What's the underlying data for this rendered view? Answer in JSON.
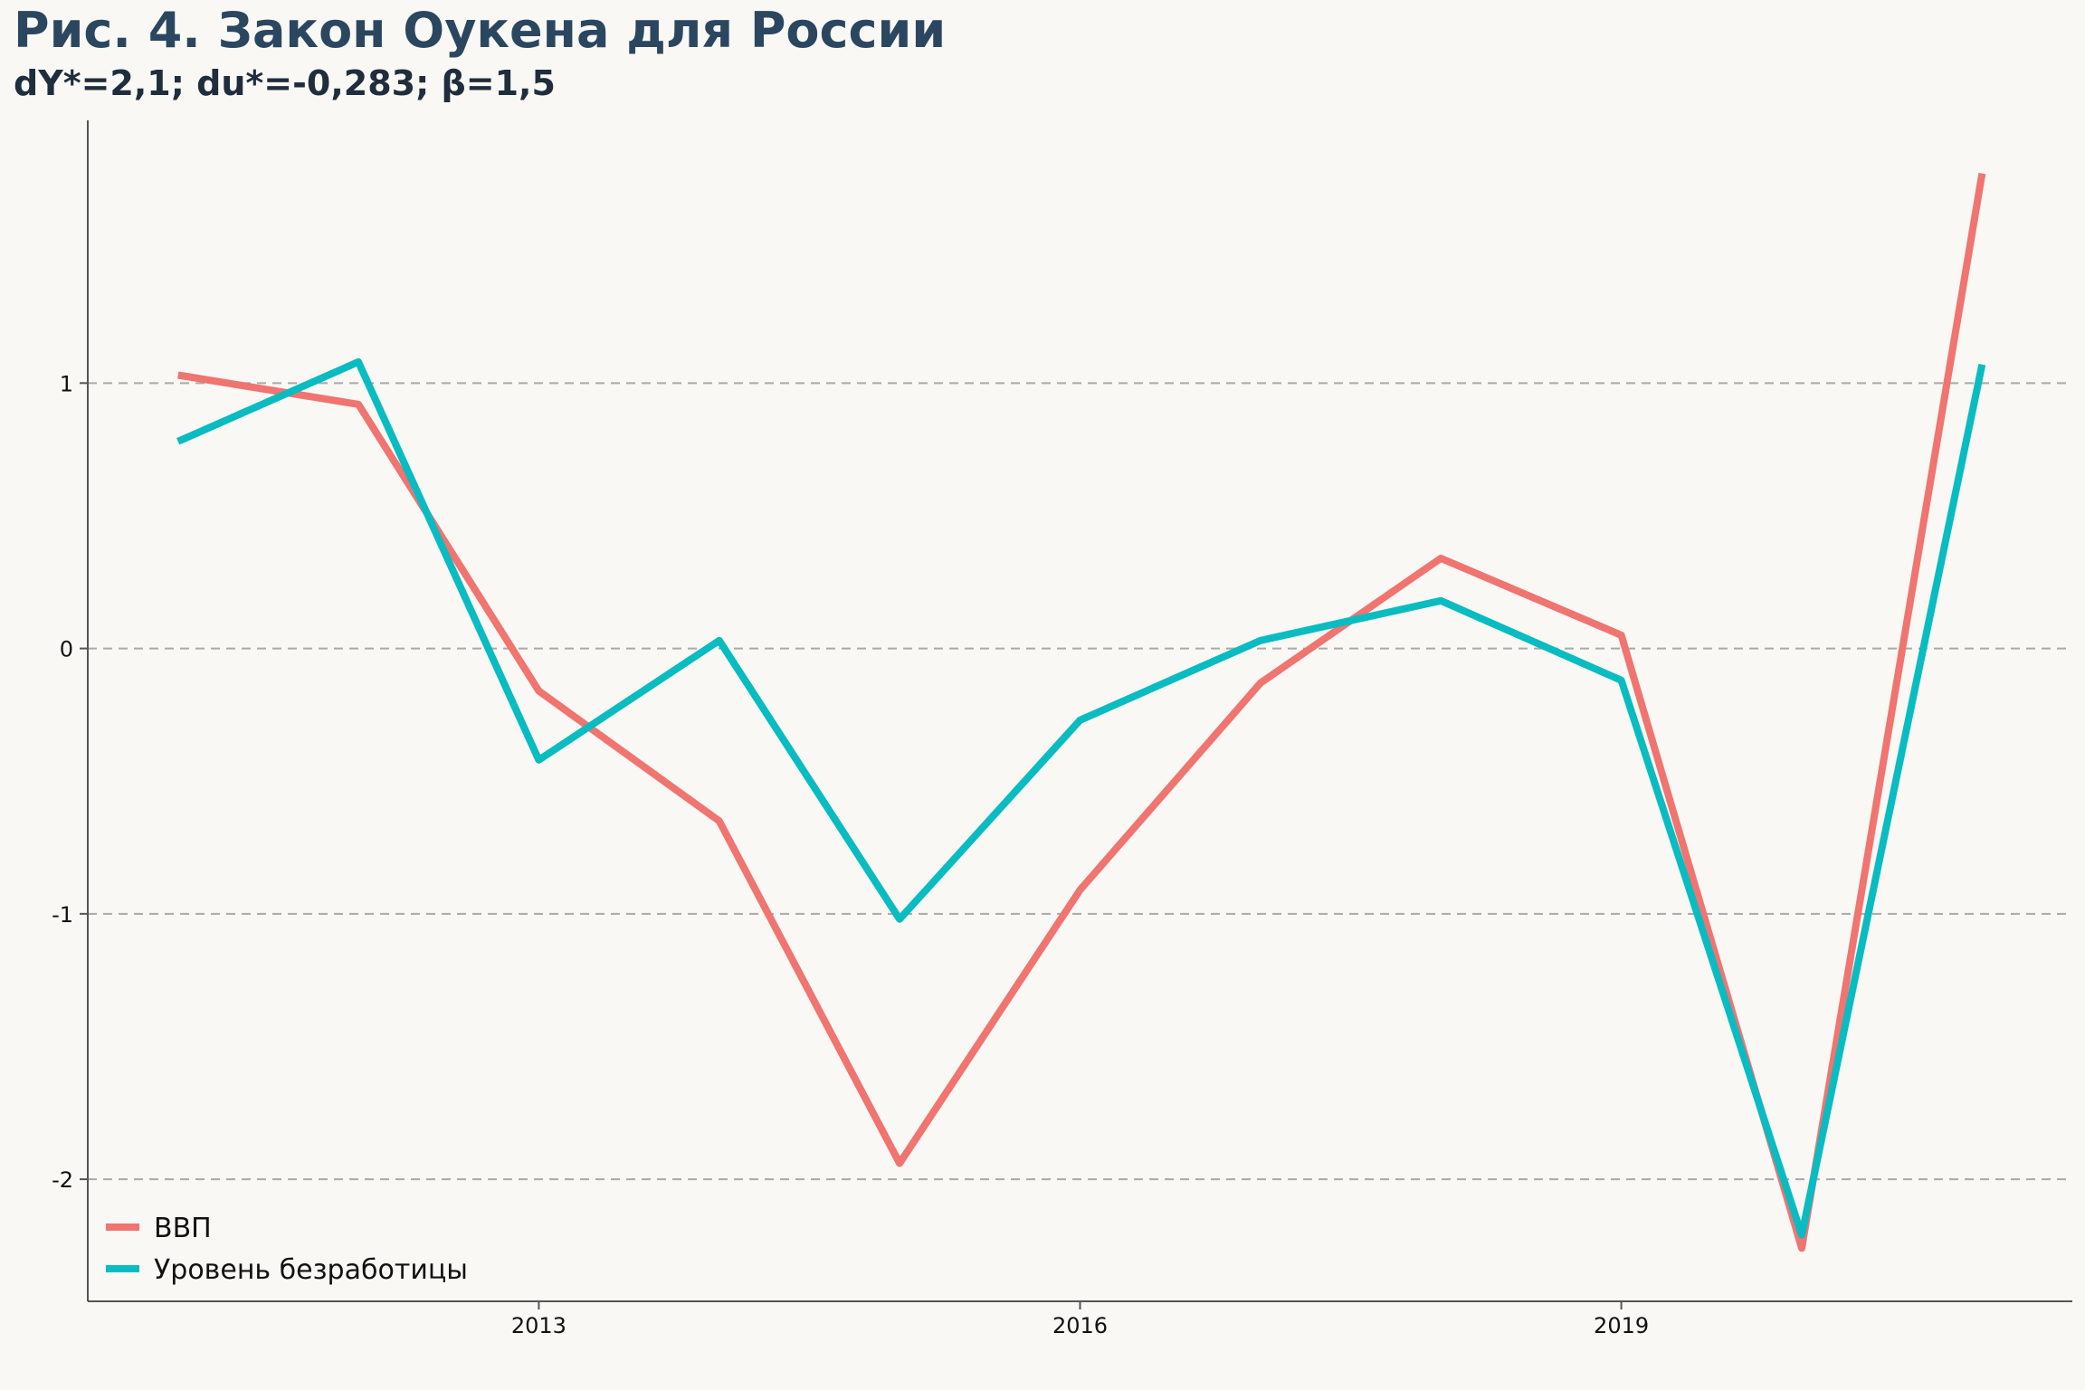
{
  "title": "Рис. 4. Закон Оукена для России",
  "subtitle": "dY*=2,1; du*=-0,283; β=1,5",
  "colors": {
    "background": "#f9f8f4",
    "gdp": "#f07470",
    "unemployment": "#09bcc1",
    "grid": "#a9a9a9",
    "axis": "#555555"
  },
  "chart_data": {
    "type": "line",
    "title": "Рис. 4. Закон Оукена для России",
    "subtitle": "dY*=2,1; du*=-0,283; β=1,5",
    "xlabel": "",
    "ylabel": "",
    "x": [
      2011,
      2012,
      2013,
      2014,
      2015,
      2016,
      2017,
      2018,
      2019,
      2020,
      2021
    ],
    "xlim": [
      2010.5,
      2021.5
    ],
    "ylim": [
      -2.46,
      1.99
    ],
    "xticks": [
      2013,
      2016,
      2019
    ],
    "xtick_labels": [
      "2013",
      "2016",
      "2019"
    ],
    "yticks": [
      1,
      0,
      -1,
      -2
    ],
    "ytick_labels": [
      "1",
      "0",
      "-1",
      "-2"
    ],
    "grid": "horizontal dashed",
    "legend_position": "bottom-left",
    "series": [
      {
        "name": "ВВП",
        "color": "#f07470",
        "values": [
          1.03,
          0.92,
          -0.16,
          -0.65,
          -1.94,
          -0.91,
          -0.13,
          0.34,
          0.05,
          -2.26,
          1.79
        ]
      },
      {
        "name": "Уровень безработицы",
        "color": "#09bcc1",
        "values": [
          0.78,
          1.08,
          -0.42,
          0.03,
          -1.02,
          -0.27,
          0.03,
          0.18,
          -0.12,
          -2.21,
          1.07
        ]
      }
    ]
  }
}
